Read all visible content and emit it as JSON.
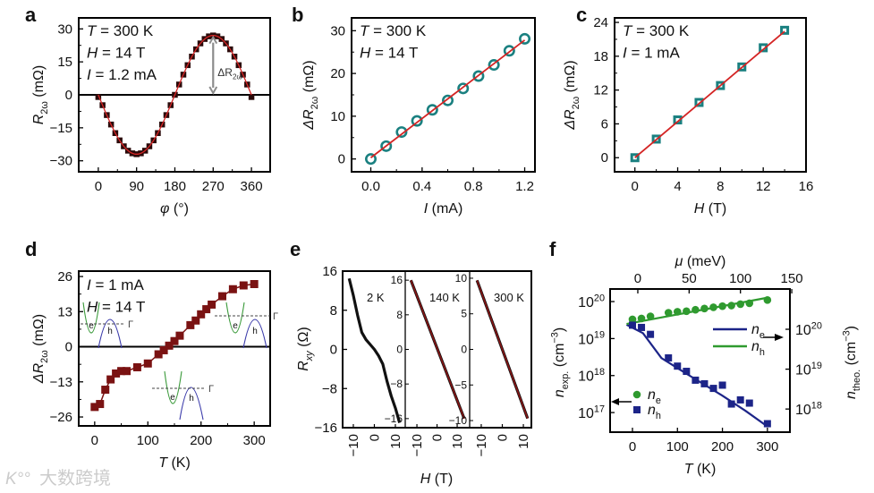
{
  "watermark": {
    "logo": "K°°",
    "text": "大数跨境"
  },
  "colors": {
    "fit_red": "#d42424",
    "teal": "#1a8080",
    "dark_red": "#7a1212",
    "green": "#2f9a2f",
    "navy": "#1c2488",
    "gray_arrow": "#8c8c8c"
  },
  "chart_data": [
    {
      "panel_label": "a",
      "type": "scatter",
      "xlabel": [
        {
          "t": "φ",
          "s": "i"
        },
        {
          "t": " (°)"
        }
      ],
      "ylabel": [
        {
          "t": "R",
          "s": "i"
        },
        {
          "t": "2ω",
          "s": "sub"
        },
        {
          "t": " (mΩ)"
        }
      ],
      "xlim": [
        -46,
        404
      ],
      "ylim": [
        -35,
        35
      ],
      "xticks": [
        0,
        90,
        180,
        270,
        360
      ],
      "xticklabels": [
        "0",
        "90",
        "180",
        "270",
        "360"
      ],
      "yticks": [
        -30,
        -15,
        0,
        15,
        30
      ],
      "yticklabels": [
        "−30",
        "−15",
        "0",
        "15",
        "30"
      ],
      "annotations": [
        [
          {
            "t": "T",
            "s": "i"
          },
          {
            "t": " = 300 K"
          }
        ],
        [
          {
            "t": "H",
            "s": "i"
          },
          {
            "t": " = 14 T"
          }
        ],
        [
          {
            "t": "I",
            "s": "i"
          },
          {
            "t": " = 1.2 mA"
          }
        ]
      ],
      "arrow_label": [
        {
          "t": "ΔR"
        },
        {
          "t": "2ω",
          "s": "sub"
        }
      ],
      "x": [
        0,
        10,
        20,
        30,
        40,
        50,
        60,
        70,
        80,
        90,
        100,
        110,
        120,
        130,
        140,
        150,
        160,
        170,
        180,
        190,
        200,
        210,
        220,
        230,
        240,
        250,
        260,
        270,
        280,
        290,
        300,
        310,
        320,
        330,
        340,
        350,
        360
      ],
      "y": [
        -1,
        -4.7,
        -9.2,
        -13.5,
        -17.4,
        -20.7,
        -23.4,
        -25.4,
        -26.6,
        -27,
        -26.6,
        -25.4,
        -23.4,
        -20.7,
        -17.4,
        -13.5,
        -9.2,
        -4.7,
        0,
        4.7,
        9.2,
        13.5,
        17.4,
        20.7,
        23.4,
        25.4,
        26.6,
        27,
        26.6,
        25.4,
        23.4,
        20.7,
        17.4,
        13.5,
        9.2,
        4.7,
        -1
      ],
      "fit": {
        "form": "-A sin(phi)",
        "A": 27
      }
    },
    {
      "panel_label": "b",
      "type": "scatter",
      "xlabel": [
        {
          "t": "I",
          "s": "i"
        },
        {
          "t": " (mA)"
        }
      ],
      "ylabel": [
        {
          "t": "ΔR",
          "s": "i"
        },
        {
          "t": "2ω",
          "s": "sub"
        },
        {
          "t": " (mΩ)"
        }
      ],
      "xlim": [
        -0.15,
        1.28
      ],
      "ylim": [
        -3,
        33
      ],
      "xticks": [
        0,
        0.4,
        0.8,
        1.2
      ],
      "xticklabels": [
        "0.0",
        "0.4",
        "0.8",
        "1.2"
      ],
      "yticks": [
        0,
        10,
        20,
        30
      ],
      "yticklabels": [
        "0",
        "10",
        "20",
        "30"
      ],
      "annotations": [
        [
          {
            "t": "T",
            "s": "i"
          },
          {
            "t": " = 300 K"
          }
        ],
        [
          {
            "t": "H",
            "s": "i"
          },
          {
            "t": " = 14 T"
          }
        ]
      ],
      "x": [
        0,
        0.12,
        0.24,
        0.36,
        0.48,
        0.6,
        0.72,
        0.84,
        0.96,
        1.08,
        1.2
      ],
      "y": [
        0,
        3,
        6.3,
        8.9,
        11.5,
        13.7,
        16.5,
        19.4,
        22,
        25.3,
        28.1
      ],
      "fit": {
        "x": [
          0,
          1.2
        ],
        "y": [
          0.3,
          27.8
        ]
      }
    },
    {
      "panel_label": "c",
      "type": "scatter",
      "xlabel": [
        {
          "t": "H",
          "s": "i"
        },
        {
          "t": " (T)"
        }
      ],
      "ylabel": [
        {
          "t": "ΔR",
          "s": "i"
        },
        {
          "t": "2ω",
          "s": "sub"
        },
        {
          "t": " (mΩ)"
        }
      ],
      "xlim": [
        -1.9,
        16
      ],
      "ylim": [
        -2.5,
        24.8
      ],
      "xticks": [
        0,
        4,
        8,
        12,
        16
      ],
      "xticklabels": [
        "0",
        "4",
        "8",
        "12",
        "16"
      ],
      "yticks": [
        0,
        6,
        12,
        18,
        24
      ],
      "yticklabels": [
        "0",
        "6",
        "12",
        "18",
        "24"
      ],
      "annotations": [
        [
          {
            "t": "T",
            "s": "i"
          },
          {
            "t": " = 300 K"
          }
        ],
        [
          {
            "t": "I",
            "s": "i"
          },
          {
            "t": " = 1 mA"
          }
        ]
      ],
      "x": [
        0,
        2,
        4,
        6,
        8,
        10,
        12,
        14
      ],
      "y": [
        0,
        3.3,
        6.7,
        9.8,
        12.8,
        16.1,
        19.5,
        22.6
      ],
      "fit": {
        "x": [
          0,
          14
        ],
        "y": [
          0,
          22.4
        ]
      }
    },
    {
      "panel_label": "d",
      "type": "line",
      "xlabel": [
        {
          "t": "T",
          "s": "i"
        },
        {
          "t": " (K)"
        }
      ],
      "ylabel": [
        {
          "t": "ΔR",
          "s": "i"
        },
        {
          "t": "2ω",
          "s": "sub"
        },
        {
          "t": " (mΩ)"
        }
      ],
      "xlim": [
        -30,
        330
      ],
      "ylim": [
        -29.3,
        28
      ],
      "xticks": [
        0,
        100,
        200,
        300
      ],
      "xticklabels": [
        "0",
        "100",
        "200",
        "300"
      ],
      "yticks": [
        -26,
        -13,
        0,
        13,
        26
      ],
      "yticklabels": [
        "−26",
        "−13",
        "0",
        "13",
        "26"
      ],
      "annotations": [
        [
          {
            "t": "I",
            "s": "i"
          },
          {
            "t": " = 1 mA"
          }
        ],
        [
          {
            "t": "H",
            "s": "i"
          },
          {
            "t": " = 14 T"
          }
        ]
      ],
      "x": [
        0,
        10,
        20,
        30,
        40,
        50,
        60,
        80,
        100,
        120,
        130,
        140,
        150,
        160,
        180,
        190,
        200,
        210,
        220,
        240,
        260,
        280,
        300
      ],
      "y": [
        -22.3,
        -21.2,
        -15.9,
        -12.1,
        -9.9,
        -9,
        -9,
        -7.6,
        -6.2,
        -2.8,
        -1.3,
        0.4,
        2.1,
        4.1,
        8,
        9.7,
        12,
        13.9,
        15.6,
        18.7,
        21.3,
        22.7,
        23.2
      ],
      "inset_labels": {
        "electron": "e",
        "hole": "h",
        "gamma": "Γ"
      }
    },
    {
      "panel_label": "e",
      "type": "line",
      "xlabel": [
        {
          "t": "H",
          "s": "i"
        },
        {
          "t": " (T)"
        }
      ],
      "ylabel": [
        {
          "t": "R",
          "s": "i"
        },
        {
          "t": "xy",
          "s": "subi"
        },
        {
          "t": " (Ω)"
        }
      ],
      "yticks": [
        -16,
        -8,
        0,
        8,
        16
      ],
      "yticklabels": [
        "−16",
        "−8",
        "0",
        "8",
        "16"
      ],
      "subpanels": [
        {
          "label": "2 K",
          "xlim": [
            -15.1,
            14.7
          ],
          "ylim": [
            -16,
            16
          ],
          "xticks": [
            -10,
            0,
            10
          ],
          "xticklabels": [
            "−10",
            "0",
            "10"
          ],
          "x": [
            -12,
            -10,
            -8,
            -6,
            -4,
            -2,
            0,
            2,
            4,
            6,
            8,
            10,
            12
          ],
          "y": [
            14.5,
            11,
            7,
            3.5,
            2,
            1,
            0,
            -1.3,
            -3,
            -6.5,
            -9.5,
            -12,
            -15
          ],
          "fit": false
        },
        {
          "label": "140 K",
          "xlim": [
            -15.8,
            16.2
          ],
          "ylim": [
            -18.1,
            18.1
          ],
          "xticks": [
            -10,
            0,
            10
          ],
          "xticklabels": [
            "−10",
            "0",
            "10"
          ],
          "yticks": [
            -16,
            -8,
            0,
            8,
            16
          ],
          "yticklabels": [
            "−16",
            "−8",
            "0",
            "8",
            "16"
          ],
          "x": [
            -13,
            13.5
          ],
          "y": [
            16,
            -16
          ],
          "fit": true
        },
        {
          "label": "300 K",
          "xlim": [
            -15.5,
            13.8
          ],
          "ylim": [
            -11,
            11
          ],
          "xticks": [
            -10,
            0,
            10
          ],
          "xticklabels": [
            "−10",
            "0",
            "10"
          ],
          "yticks": [
            -10,
            -5,
            0,
            5,
            10
          ],
          "yticklabels": [
            "−10",
            "−5",
            "0",
            "5",
            "10"
          ],
          "x": [
            -12,
            12
          ],
          "y": [
            9.7,
            -9.7
          ],
          "fit": true
        }
      ]
    },
    {
      "panel_label": "f",
      "type": "scatter",
      "xlabel": [
        {
          "t": "T",
          "s": "i"
        },
        {
          "t": " (K)"
        }
      ],
      "top_xlabel": [
        {
          "t": "μ",
          "s": "i"
        },
        {
          "t": " (meV)"
        }
      ],
      "ylabel": [
        {
          "t": "n",
          "s": "i"
        },
        {
          "t": "exp.",
          "s": "sub"
        },
        {
          "t": " (cm"
        },
        {
          "t": "−3",
          "s": "sup"
        },
        {
          "t": ")"
        }
      ],
      "right_ylabel": [
        {
          "t": "n",
          "s": "i"
        },
        {
          "t": "theo.",
          "s": "sub"
        },
        {
          "t": " (cm"
        },
        {
          "t": "−3",
          "s": "sup"
        },
        {
          "t": ")"
        }
      ],
      "xlim": [
        -49.7,
        350
      ],
      "top_xlim": [
        -27,
        148.2
      ],
      "ylim_log10": [
        16.47,
        20.34
      ],
      "right_ylim_log10": [
        17.42,
        21.01
      ],
      "xticks": [
        0,
        100,
        200,
        300
      ],
      "xticklabels": [
        "0",
        "100",
        "200",
        "300"
      ],
      "top_xticks": [
        0,
        50,
        100,
        150
      ],
      "top_xticklabels": [
        "0",
        "50",
        "100",
        "150"
      ],
      "yticks_log10": [
        17,
        18,
        19,
        20
      ],
      "yticklabels": [
        [
          {
            "t": "10"
          },
          {
            "t": "17",
            "s": "sup"
          }
        ],
        [
          {
            "t": "10"
          },
          {
            "t": "18",
            "s": "sup"
          }
        ],
        [
          {
            "t": "10"
          },
          {
            "t": "19",
            "s": "sup"
          }
        ],
        [
          {
            "t": "10"
          },
          {
            "t": "20",
            "s": "sup"
          }
        ]
      ],
      "right_yticks_log10": [
        18,
        19,
        20
      ],
      "right_yticklabels": [
        [
          {
            "t": "10"
          },
          {
            "t": "18",
            "s": "sup"
          }
        ],
        [
          {
            "t": "10"
          },
          {
            "t": "19",
            "s": "sup"
          }
        ],
        [
          {
            "t": "10"
          },
          {
            "t": "20",
            "s": "sup"
          }
        ]
      ],
      "series": [
        {
          "name": [
            {
              "t": "n",
              "s": "i"
            },
            {
              "t": "e",
              "s": "sub"
            }
          ],
          "marker": "circle",
          "color": "#2f9a2f",
          "x": [
            0,
            20,
            40,
            80,
            100,
            120,
            140,
            160,
            180,
            200,
            220,
            240,
            260,
            300
          ],
          "y": [
            3.3e+19,
            3.5e+19,
            4e+19,
            5e+19,
            5.3e+19,
            5.5e+19,
            6e+19,
            6.5e+19,
            7e+19,
            7.5e+19,
            7.8e+19,
            8.5e+19,
            9e+19,
            1.1e+20
          ]
        },
        {
          "name": [
            {
              "t": "n",
              "s": "i"
            },
            {
              "t": "h",
              "s": "sub"
            }
          ],
          "marker": "square",
          "color": "#1c2488",
          "x": [
            0,
            20,
            40,
            80,
            100,
            120,
            140,
            160,
            180,
            200,
            220,
            240,
            260,
            300
          ],
          "y": [
            2.3e+19,
            2e+19,
            1.3e+19,
            3e+18,
            1.8e+18,
            1.3e+18,
            7.5e+17,
            6e+17,
            4.5e+17,
            5.5e+17,
            1.7e+17,
            2.2e+17,
            1.8e+17,
            5e+16
          ]
        }
      ],
      "theory": [
        {
          "name": [
            {
              "t": "n",
              "s": "i"
            },
            {
              "t": "e",
              "s": "sub"
            }
          ],
          "color": "#1c2488",
          "mu": [
            -11,
            5,
            23,
            50,
            82,
            105,
            126
          ],
          "y": [
            1.3e+20,
            8e+19,
            1.9e+19,
            7e+18,
            2.2e+18,
            9e+17,
            3.7e+17
          ]
        },
        {
          "name": [
            {
              "t": "n",
              "s": "i"
            },
            {
              "t": "h",
              "s": "sub"
            }
          ],
          "color": "#2f9a2f",
          "mu": [
            -11,
            125
          ],
          "y": [
            1.36e+20,
            6.1e+20
          ]
        }
      ]
    }
  ]
}
